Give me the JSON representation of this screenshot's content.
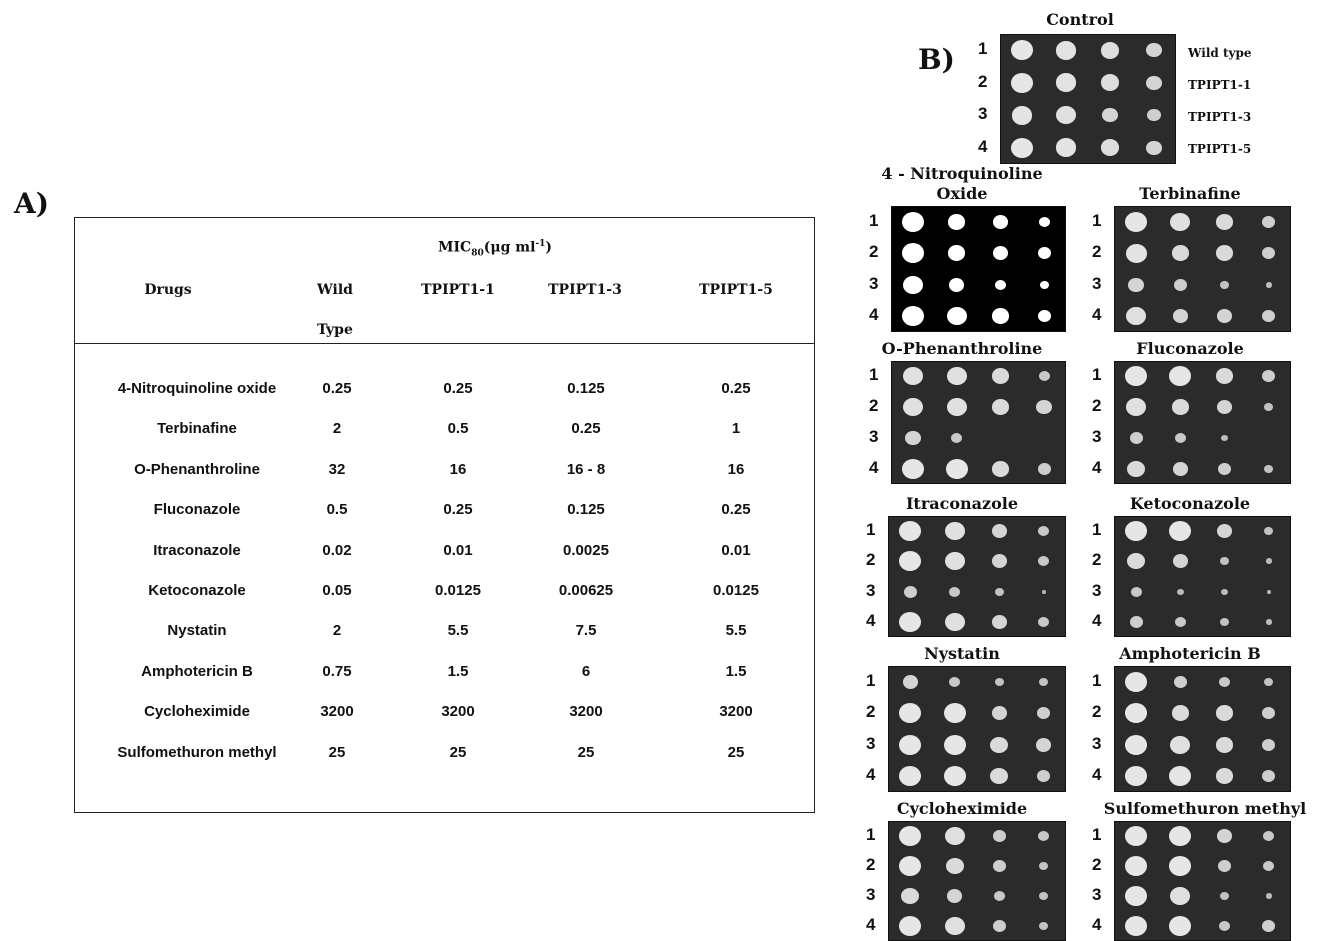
{
  "panel_a": {
    "label": "A)",
    "mic_header": {
      "prefix": "MIC",
      "sub": "80",
      "unit_open": "(μg ml",
      "sup": "-1",
      "unit_close": ")"
    },
    "columns": [
      "Drugs",
      "Wild",
      "TPIPT1-1",
      "TPIPT1-3",
      "TPIPT1-5"
    ],
    "wild_second_line": "Type",
    "rows": [
      [
        "4-Nitroquinoline oxide",
        "0.25",
        "0.25",
        "0.125",
        "0.25"
      ],
      [
        "Terbinafine",
        "2",
        "0.5",
        "0.25",
        "1"
      ],
      [
        "O-Phenanthroline",
        "32",
        "16",
        "16 - 8",
        "16"
      ],
      [
        "Fluconazole",
        "0.5",
        "0.25",
        "0.125",
        "0.25"
      ],
      [
        "Itraconazole",
        "0.02",
        "0.01",
        "0.0025",
        "0.01"
      ],
      [
        "Ketoconazole",
        "0.05",
        "0.0125",
        "0.00625",
        "0.0125"
      ],
      [
        "Nystatin",
        "2",
        "5.5",
        "7.5",
        "5.5"
      ],
      [
        "Amphotericin B",
        "0.75",
        "1.5",
        "6",
        "1.5"
      ],
      [
        "Cycloheximide",
        "3200",
        "3200",
        "3200",
        "3200"
      ],
      [
        "Sulfomethuron methyl",
        "25",
        "25",
        "25",
        "25"
      ]
    ]
  },
  "panel_b": {
    "label": "B)",
    "row_numbers": [
      "1",
      "2",
      "3",
      "4"
    ],
    "strains": [
      "Wild type",
      "TPIPT1-1",
      "TPIPT1-3",
      "TPIPT1-5"
    ],
    "plates": [
      {
        "title": "Control",
        "title2": ""
      },
      {
        "title": "4 - Nitroquinoline",
        "title2": "Oxide"
      },
      {
        "title": "Terbinafine",
        "title2": ""
      },
      {
        "title": "O-Phenanthroline",
        "title2": ""
      },
      {
        "title": "Fluconazole",
        "title2": ""
      },
      {
        "title": "Itraconazole",
        "title2": ""
      },
      {
        "title": "Ketoconazole",
        "title2": ""
      },
      {
        "title": "Nystatin",
        "title2": ""
      },
      {
        "title": "Amphotericin B",
        "title2": ""
      },
      {
        "title": "Cycloheximide",
        "title2": ""
      },
      {
        "title": "Sulfomethuron methyl",
        "title2": ""
      }
    ]
  }
}
